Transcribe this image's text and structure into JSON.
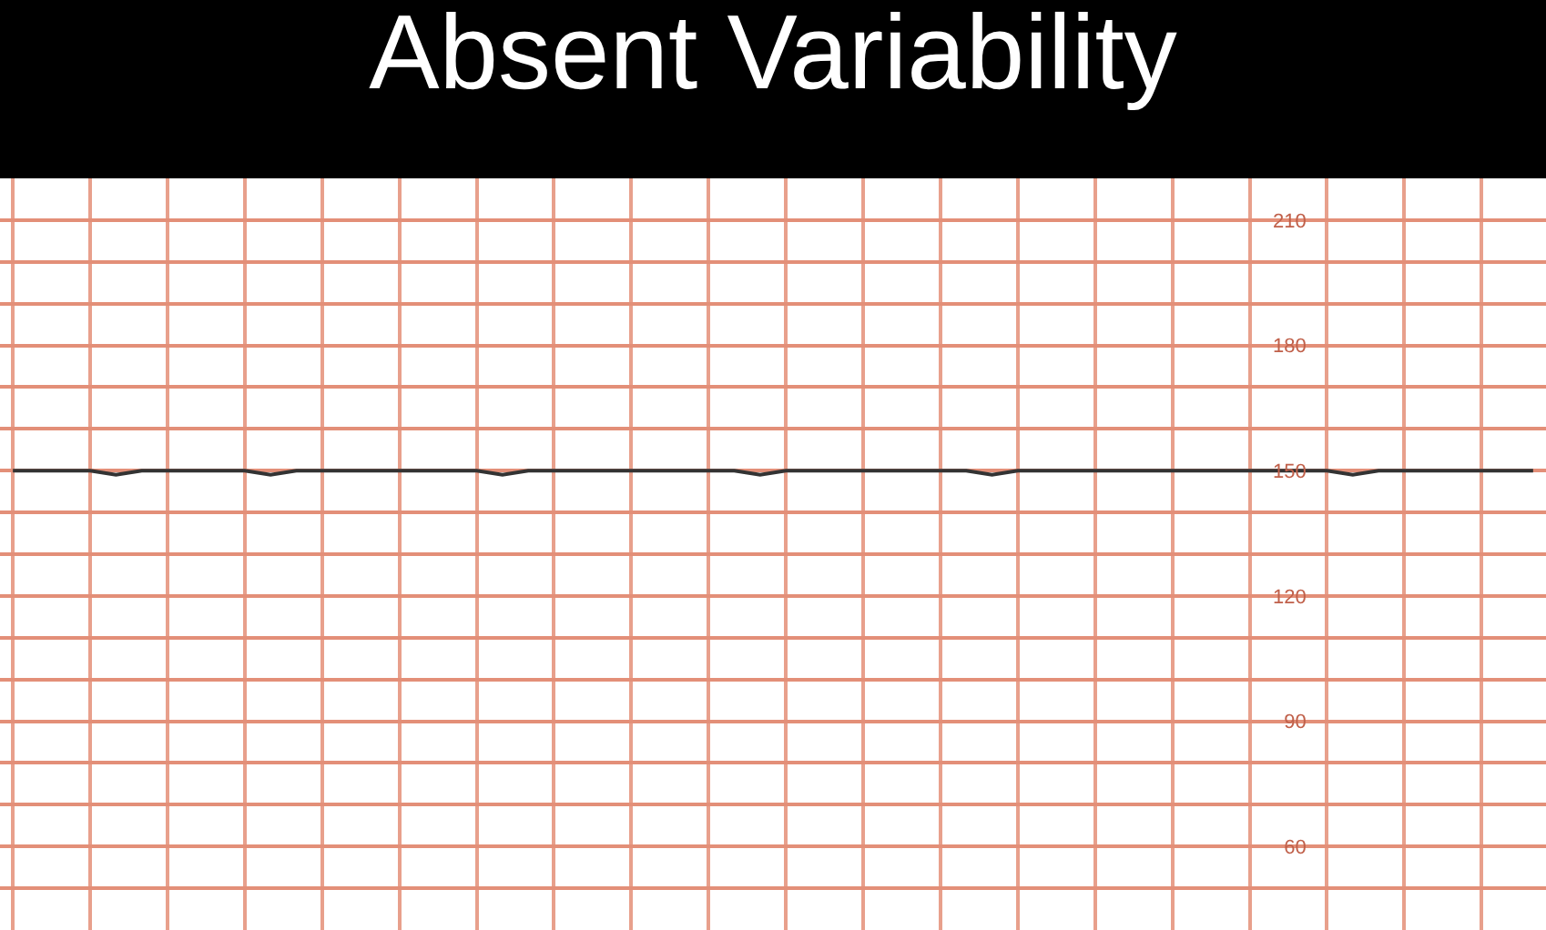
{
  "chart_data": {
    "type": "line",
    "title": "Absent Variability",
    "categories": [
      null,
      null,
      null,
      null,
      null,
      null,
      null,
      null,
      null,
      null,
      null,
      null,
      null,
      null,
      null,
      null,
      null,
      null,
      null,
      null,
      null,
      null,
      null,
      null,
      null,
      null,
      null,
      null,
      null,
      null,
      null,
      null,
      null,
      null,
      null,
      null,
      null,
      null,
      null,
      null,
      null,
      null,
      null,
      null,
      null,
      null,
      null,
      null,
      null,
      null,
      null,
      null,
      null,
      null,
      null,
      null,
      null,
      null,
      null,
      null
    ],
    "series": [
      {
        "color": "#333333",
        "values": [
          150,
          150,
          150,
          150,
          149,
          150,
          150,
          150,
          150,
          150,
          149,
          150,
          150,
          150,
          150,
          150,
          150,
          150,
          150,
          149,
          150,
          150,
          150,
          150,
          150,
          150,
          150,
          150,
          150,
          149,
          150,
          150,
          150,
          150,
          150,
          150,
          150,
          150,
          149,
          150,
          150,
          150,
          150,
          150,
          150,
          150,
          150,
          150,
          150,
          150,
          150,
          150,
          149,
          150,
          150,
          150,
          150,
          150,
          150,
          150
        ]
      }
    ],
    "ylim": [
      40,
      220
    ],
    "yticks": [
      {
        "value": 50,
        "label": null
      },
      60,
      {
        "value": 70,
        "label": null
      },
      {
        "value": 80,
        "label": null
      },
      90,
      {
        "value": 100,
        "label": null
      },
      {
        "value": 110,
        "label": null
      },
      120,
      {
        "value": 130,
        "label": null
      },
      {
        "value": 140,
        "label": null
      },
      150,
      {
        "value": 160,
        "label": null
      },
      {
        "value": 170,
        "label": null
      },
      180,
      {
        "value": 190,
        "label": null
      },
      {
        "value": 200,
        "label": null
      },
      210
    ],
    "grid": true,
    "legend": false,
    "marker": "none",
    "line_style": "solid"
  }
}
